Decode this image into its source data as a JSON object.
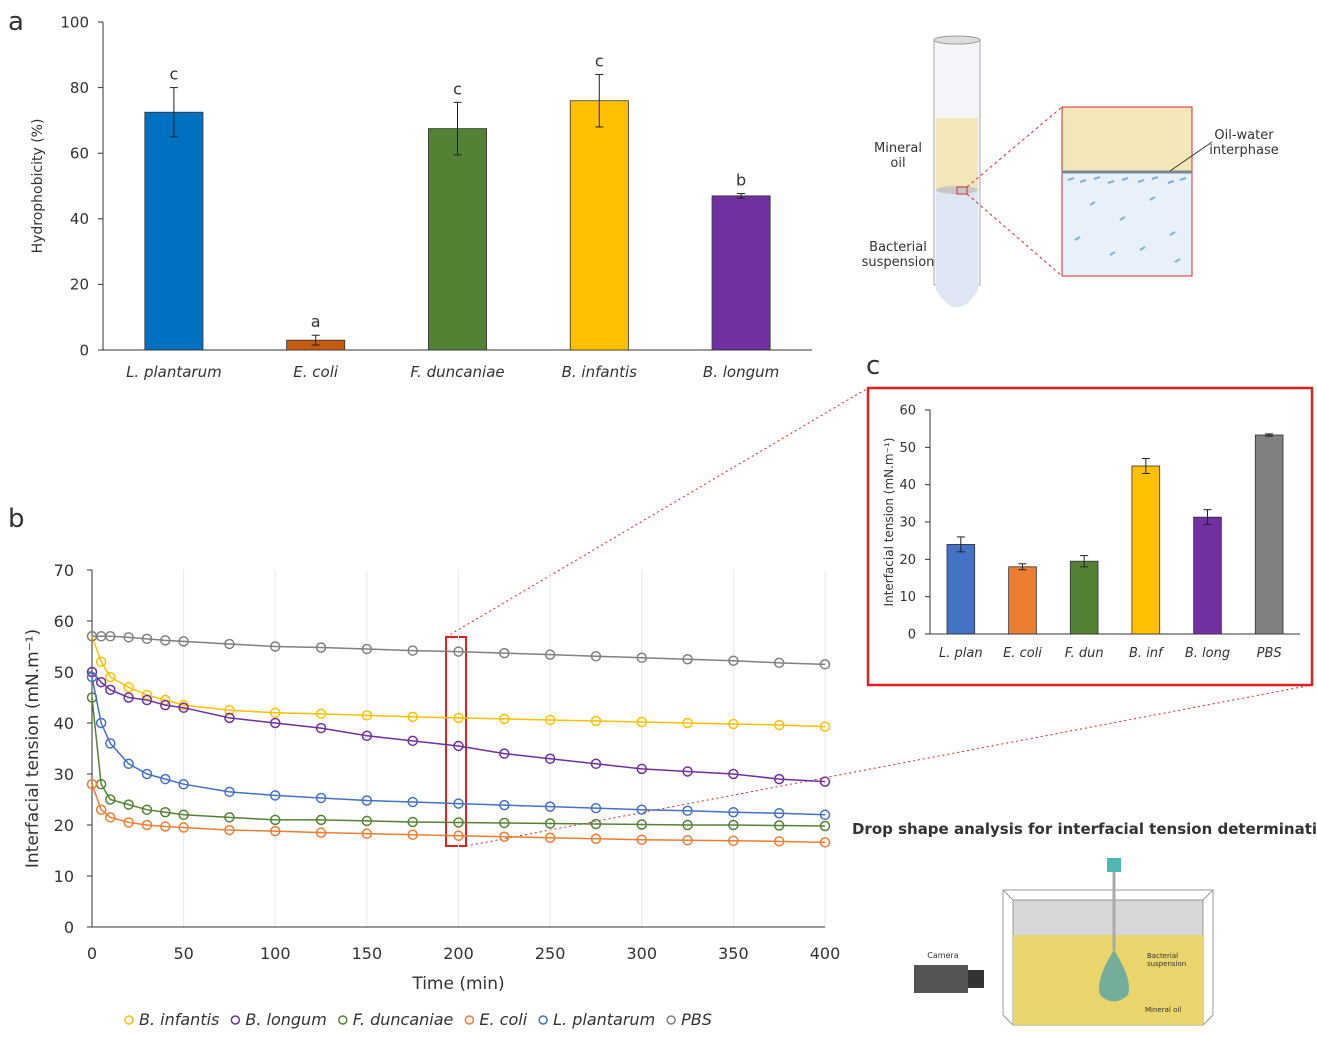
{
  "panels": {
    "a": "a",
    "b": "b",
    "c": "c"
  },
  "chart_data": [
    {
      "type": "bar",
      "y_label": "Hydrophobicity (%)",
      "categories": [
        "L. plantarum",
        "E. coli",
        "F. duncaniae",
        "B. infantis",
        "B. longum"
      ],
      "values": [
        72.5,
        3,
        67.5,
        76,
        47
      ],
      "errors": [
        7.5,
        1.5,
        8,
        8,
        0.7
      ],
      "annotations": [
        "c",
        "a",
        "c",
        "c",
        "b"
      ],
      "colors": [
        "#0070c0",
        "#c55a11",
        "#548235",
        "#ffc000",
        "#7030a0"
      ],
      "ylim": [
        0,
        100
      ],
      "yticks": [
        0,
        20,
        40,
        60,
        80,
        100
      ],
      "grid": false
    },
    {
      "type": "line",
      "x_label": "Time (min)",
      "y_label": "Interfacial tension (mN.m⁻¹)",
      "x": [
        0,
        5,
        10,
        20,
        30,
        40,
        50,
        75,
        100,
        125,
        150,
        175,
        200,
        225,
        250,
        275,
        300,
        325,
        350,
        375,
        400
      ],
      "series": [
        {
          "name": "B. infantis",
          "color": "#ffc000",
          "values": [
            57,
            52,
            49,
            47,
            45.5,
            44.5,
            43.5,
            42.5,
            42,
            41.8,
            41.5,
            41.2,
            41,
            40.8,
            40.6,
            40.4,
            40.2,
            40,
            39.8,
            39.6,
            39.3
          ]
        },
        {
          "name": "B. longum",
          "color": "#7030a0",
          "values": [
            50,
            48,
            46.5,
            45,
            44.5,
            43.5,
            43,
            41,
            40,
            39,
            37.5,
            36.5,
            35.5,
            34,
            33,
            32,
            31,
            30.5,
            30,
            29,
            28.5
          ]
        },
        {
          "name": "F. duncaniae",
          "color": "#548235",
          "values": [
            45,
            28,
            25,
            24,
            23,
            22.5,
            22,
            21.5,
            21,
            21,
            20.8,
            20.6,
            20.5,
            20.4,
            20.3,
            20.2,
            20.1,
            20,
            20,
            19.9,
            19.8
          ]
        },
        {
          "name": "E. coli",
          "color": "#ed7d31",
          "values": [
            28,
            23,
            21.5,
            20.5,
            20,
            19.7,
            19.5,
            19,
            18.8,
            18.5,
            18.3,
            18.1,
            17.9,
            17.7,
            17.5,
            17.3,
            17.1,
            17,
            16.9,
            16.8,
            16.6
          ]
        },
        {
          "name": "L. plantarum",
          "color": "#4472c4",
          "values": [
            49,
            40,
            36,
            32,
            30,
            29,
            28,
            26.5,
            25.8,
            25.3,
            24.8,
            24.5,
            24.2,
            23.9,
            23.6,
            23.3,
            23,
            22.8,
            22.5,
            22.3,
            22
          ]
        },
        {
          "name": "PBS",
          "color": "#808080",
          "values": [
            57,
            57,
            57,
            56.8,
            56.5,
            56.2,
            56,
            55.5,
            55,
            54.8,
            54.5,
            54.2,
            54,
            53.7,
            53.4,
            53.1,
            52.8,
            52.5,
            52.2,
            51.8,
            51.5
          ]
        }
      ],
      "xlim": [
        0,
        400
      ],
      "xticks": [
        0,
        50,
        100,
        150,
        200,
        250,
        300,
        350,
        400
      ],
      "ylim": [
        0,
        70
      ],
      "yticks": [
        0,
        10,
        20,
        30,
        40,
        50,
        60,
        70
      ],
      "grid": true,
      "legend": "bottom"
    },
    {
      "type": "bar",
      "y_label": "Interfacial tension (mN.m⁻¹)",
      "categories": [
        "L. plan",
        "E. coli",
        "F. dun",
        "B. inf",
        "B. long",
        "PBS"
      ],
      "values": [
        24,
        18,
        19.5,
        45,
        31.3,
        53.3
      ],
      "errors": [
        2,
        0.8,
        1.5,
        2,
        2,
        0.3
      ],
      "colors": [
        "#4472c4",
        "#ed7d31",
        "#548235",
        "#ffc000",
        "#7030a0",
        "#808080"
      ],
      "ylim": [
        0,
        60
      ],
      "yticks": [
        0,
        10,
        20,
        30,
        40,
        50,
        60
      ],
      "grid": false
    }
  ],
  "diagram": {
    "tube": {
      "mineral_oil": [
        "Mineral",
        "oil"
      ],
      "bacterial_suspension": [
        "Bacterial",
        "suspension"
      ],
      "interphase": [
        "Oil-water",
        "interphase"
      ]
    },
    "drop": {
      "title": "Drop shape analysis for interfacial tension determination",
      "camera": "Camera",
      "bacterial_suspension": [
        "Bacterial",
        "suspension"
      ],
      "mineral_oil": "Mineral oil"
    }
  }
}
